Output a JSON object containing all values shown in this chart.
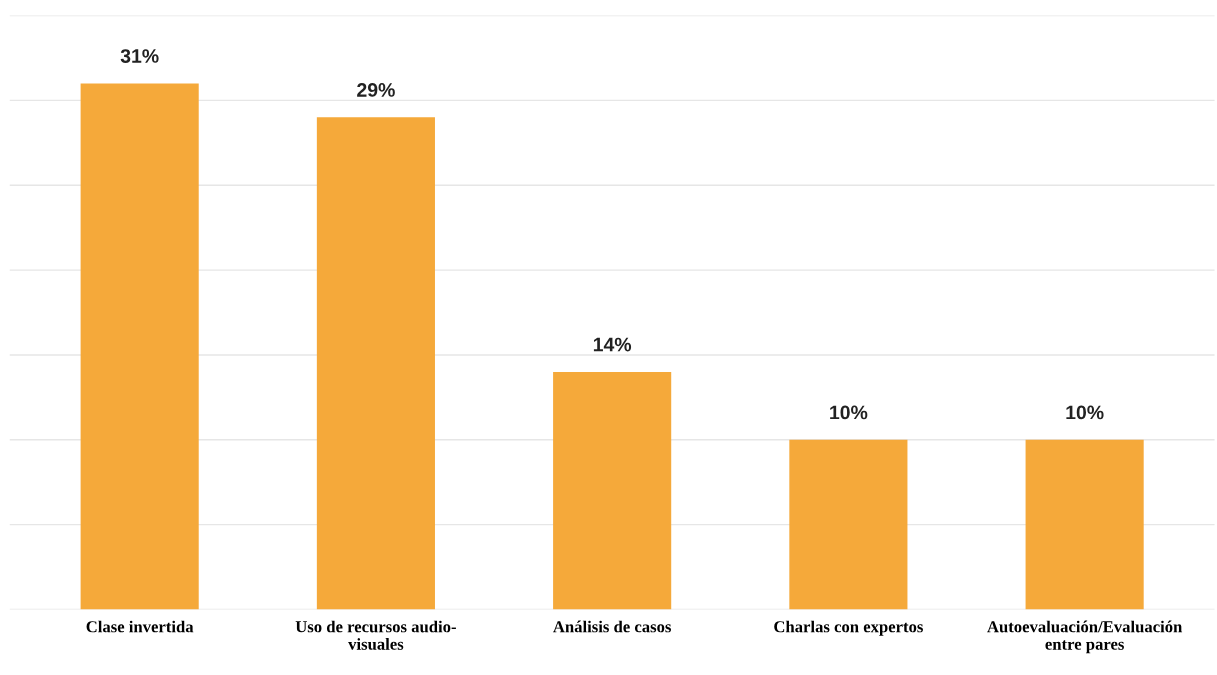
{
  "chart_data": {
    "type": "bar",
    "categories": [
      "Clase invertida",
      "Uso de recursos audio-\nvisuales",
      "Análisis de casos",
      "Charlas con expertos",
      "Autoevaluación/Evaluación\nentre pares"
    ],
    "values": [
      31,
      29,
      14,
      10,
      10
    ],
    "value_labels": [
      "31%",
      "29%",
      "14%",
      "10%",
      "10%"
    ],
    "color": "#f5a93a",
    "ylim": [
      0,
      35
    ],
    "yticks": [
      {
        "value": 0,
        "label": null
      },
      {
        "value": 5,
        "label": null
      },
      {
        "value": 10,
        "label": null
      },
      {
        "value": 15,
        "label": null
      },
      {
        "value": 20,
        "label": null
      },
      {
        "value": 25,
        "label": null
      },
      {
        "value": 30,
        "label": null
      },
      {
        "value": 35,
        "label": null
      }
    ],
    "grid": "y",
    "tick_labels": "x"
  }
}
